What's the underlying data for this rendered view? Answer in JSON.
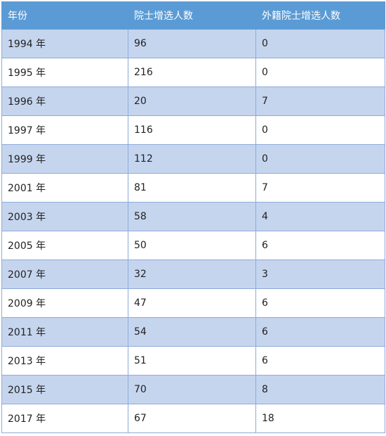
{
  "table": {
    "headers": [
      "年份",
      "院士增选人数",
      "外籍院士增选人数"
    ],
    "rows": [
      [
        "1994 年",
        "96",
        "0"
      ],
      [
        "1995 年",
        "216",
        "0"
      ],
      [
        "1996 年",
        "20",
        "7"
      ],
      [
        "1997 年",
        "116",
        "0"
      ],
      [
        "1999 年",
        "112",
        "0"
      ],
      [
        "2001 年",
        "81",
        "7"
      ],
      [
        "2003 年",
        "58",
        "4"
      ],
      [
        "2005 年",
        "50",
        "6"
      ],
      [
        "2007 年",
        "32",
        "3"
      ],
      [
        "2009 年",
        "47",
        "6"
      ],
      [
        "2011 年",
        "54",
        "6"
      ],
      [
        "2013 年",
        "51",
        "6"
      ],
      [
        "2015 年",
        "70",
        "8"
      ],
      [
        "2017 年",
        "67",
        "18"
      ]
    ]
  },
  "colors": {
    "header_bg": "#5b9bd5",
    "header_text": "#ffffff",
    "band_row_bg": "#c5d5ee",
    "plain_row_bg": "#ffffff",
    "border": "#8eaadb"
  }
}
